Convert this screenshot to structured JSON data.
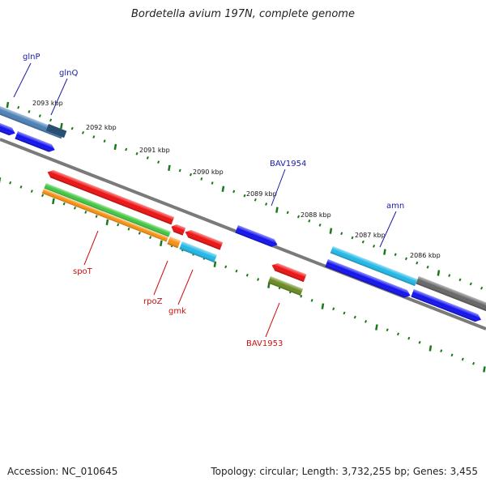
{
  "title": "Bordetella avium 197N, complete genome",
  "accession": "Accession: NC_010645",
  "summary": "Topology: circular; Length: 3,732,255 bp; Genes: 3,455",
  "colors": {
    "blue": "#1010f0",
    "steelblue": "#4a80b8",
    "cyan": "#20b8e8",
    "red": "#ee1010",
    "green": "#40c840",
    "orange": "#f89010",
    "olive": "#6a8a20",
    "gray": "#666666",
    "tick": "#1a7a1a",
    "forward_label": "#1a1aaa",
    "reverse_label": "#cc1010"
  },
  "tick_labels": [
    "2093 kbp",
    "2092 kbp",
    "2091 kbp",
    "2090 kbp",
    "2089 kbp",
    "2088 kbp",
    "2087 kbp",
    "2086 kbp"
  ],
  "genes": [
    {
      "name": "glnP",
      "strand": "forward"
    },
    {
      "name": "glnQ",
      "strand": "forward"
    },
    {
      "name": "BAV1954",
      "strand": "forward"
    },
    {
      "name": "amn",
      "strand": "forward"
    },
    {
      "name": "spoT",
      "strand": "reverse"
    },
    {
      "name": "rpoZ",
      "strand": "reverse"
    },
    {
      "name": "gmk",
      "strand": "reverse"
    },
    {
      "name": "BAV1953",
      "strand": "reverse"
    }
  ]
}
